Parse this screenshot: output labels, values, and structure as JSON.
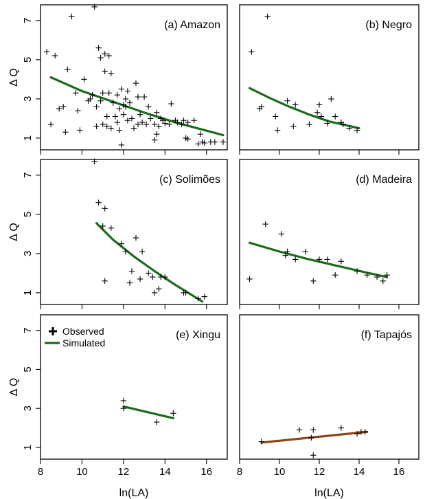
{
  "chart_data": {
    "type": "scatter",
    "layout": "3x2 panel grid",
    "xlabel": "ln(LA)",
    "ylabel": "Δ Q",
    "xlim": [
      8,
      17
    ],
    "ylim": [
      0.4,
      7.8
    ],
    "xticks": [
      8,
      10,
      12,
      14,
      16
    ],
    "yticks": [
      1,
      3,
      5,
      7
    ],
    "legend": {
      "position": "top-left",
      "panel": 4,
      "observed_label": "Observed",
      "simulated_label": "Simulated"
    },
    "colors": {
      "observed": "#000000",
      "simulated": "#1a6b1a",
      "simulated_tapajos": "#8b4513"
    },
    "panels": [
      {
        "title": "(a) Amazon",
        "observed": [
          [
            8.3,
            5.4
          ],
          [
            8.5,
            1.7
          ],
          [
            8.7,
            5.2
          ],
          [
            8.9,
            2.5
          ],
          [
            9.1,
            2.6
          ],
          [
            9.2,
            1.3
          ],
          [
            9.3,
            4.5
          ],
          [
            9.5,
            7.2
          ],
          [
            9.7,
            3.3
          ],
          [
            9.8,
            2.4
          ],
          [
            9.9,
            1.4
          ],
          [
            10.1,
            4.0
          ],
          [
            10.3,
            2.9
          ],
          [
            10.4,
            3.0
          ],
          [
            10.5,
            3.2
          ],
          [
            10.6,
            7.7
          ],
          [
            10.7,
            2.6
          ],
          [
            10.7,
            1.6
          ],
          [
            10.8,
            5.6
          ],
          [
            10.9,
            5.1
          ],
          [
            10.9,
            2.9
          ],
          [
            11.0,
            3.3
          ],
          [
            11.0,
            1.7
          ],
          [
            11.1,
            5.3
          ],
          [
            11.1,
            4.4
          ],
          [
            11.2,
            2.1
          ],
          [
            11.2,
            1.6
          ],
          [
            11.3,
            3.3
          ],
          [
            11.3,
            5.2
          ],
          [
            11.4,
            4.3
          ],
          [
            11.4,
            1.5
          ],
          [
            11.5,
            2.8
          ],
          [
            11.6,
            2.1
          ],
          [
            11.7,
            3.2
          ],
          [
            11.7,
            1.8
          ],
          [
            11.8,
            2.5
          ],
          [
            11.8,
            1.4
          ],
          [
            11.9,
            3.5
          ],
          [
            11.9,
            0.65
          ],
          [
            12.0,
            2.7
          ],
          [
            12.0,
            2.2
          ],
          [
            12.1,
            3.0
          ],
          [
            12.1,
            2.6
          ],
          [
            12.2,
            3.4
          ],
          [
            12.2,
            1.9
          ],
          [
            12.3,
            2.8
          ],
          [
            12.4,
            2.0
          ],
          [
            12.5,
            1.5
          ],
          [
            12.6,
            3.8
          ],
          [
            12.7,
            1.7
          ],
          [
            12.7,
            3.1
          ],
          [
            12.8,
            2.2
          ],
          [
            12.9,
            1.8
          ],
          [
            13.0,
            3.1
          ],
          [
            13.1,
            1.7
          ],
          [
            13.2,
            2.6
          ],
          [
            13.3,
            2.0
          ],
          [
            13.5,
            1.7
          ],
          [
            13.5,
            0.9
          ],
          [
            13.6,
            2.3
          ],
          [
            13.6,
            1.2
          ],
          [
            13.7,
            1.6
          ],
          [
            13.8,
            2.0
          ],
          [
            13.9,
            1.9
          ],
          [
            14.0,
            1.75
          ],
          [
            14.2,
            1.7
          ],
          [
            14.3,
            2.75
          ],
          [
            14.5,
            1.9
          ],
          [
            14.6,
            1.8
          ],
          [
            14.8,
            1.7
          ],
          [
            14.9,
            1.9
          ],
          [
            15.0,
            1.0
          ],
          [
            15.1,
            1.8
          ],
          [
            15.1,
            0.95
          ],
          [
            15.4,
            1.9
          ],
          [
            15.6,
            0.7
          ],
          [
            15.7,
            1.2
          ],
          [
            15.8,
            0.8
          ],
          [
            15.9,
            0.75
          ],
          [
            16.2,
            0.8
          ],
          [
            16.4,
            0.8
          ],
          [
            16.8,
            0.8
          ]
        ],
        "simulated": [
          [
            8.5,
            4.1
          ],
          [
            10.0,
            3.4
          ],
          [
            11.5,
            2.85
          ],
          [
            13.0,
            2.3
          ],
          [
            14.5,
            1.8
          ],
          [
            16.8,
            1.15
          ]
        ]
      },
      {
        "title": "(b) Negro",
        "observed": [
          [
            8.6,
            5.4
          ],
          [
            9.0,
            2.5
          ],
          [
            9.1,
            2.6
          ],
          [
            9.4,
            7.2
          ],
          [
            9.8,
            2.1
          ],
          [
            9.9,
            1.4
          ],
          [
            10.4,
            2.9
          ],
          [
            10.7,
            1.6
          ],
          [
            10.8,
            2.7
          ],
          [
            11.5,
            1.7
          ],
          [
            11.9,
            2.3
          ],
          [
            12.0,
            2.7
          ],
          [
            12.1,
            2.1
          ],
          [
            12.4,
            1.75
          ],
          [
            12.6,
            3.0
          ],
          [
            12.8,
            2.1
          ],
          [
            13.1,
            1.8
          ],
          [
            13.2,
            1.7
          ],
          [
            13.5,
            1.5
          ],
          [
            13.9,
            1.4
          ]
        ],
        "simulated": [
          [
            8.5,
            3.55
          ],
          [
            9.5,
            3.05
          ],
          [
            10.5,
            2.6
          ],
          [
            11.5,
            2.2
          ],
          [
            12.5,
            1.85
          ],
          [
            14.0,
            1.5
          ]
        ]
      },
      {
        "title": "(c) Solimões",
        "observed": [
          [
            10.6,
            7.7
          ],
          [
            10.8,
            5.6
          ],
          [
            11.0,
            4.4
          ],
          [
            11.1,
            5.3
          ],
          [
            11.1,
            1.6
          ],
          [
            11.4,
            4.3
          ],
          [
            11.9,
            3.5
          ],
          [
            12.1,
            3.1
          ],
          [
            12.3,
            1.5
          ],
          [
            12.4,
            2.1
          ],
          [
            12.6,
            3.8
          ],
          [
            12.8,
            1.7
          ],
          [
            12.9,
            3.1
          ],
          [
            13.2,
            2.0
          ],
          [
            13.4,
            1.8
          ],
          [
            13.5,
            1.0
          ],
          [
            13.7,
            1.2
          ],
          [
            13.8,
            1.8
          ],
          [
            14.0,
            1.8
          ],
          [
            14.9,
            1.0
          ],
          [
            15.0,
            1.0
          ],
          [
            15.6,
            0.7
          ],
          [
            15.9,
            0.8
          ]
        ],
        "simulated": [
          [
            10.7,
            4.55
          ],
          [
            11.5,
            3.7
          ],
          [
            12.5,
            2.85
          ],
          [
            13.5,
            2.1
          ],
          [
            14.5,
            1.4
          ],
          [
            15.8,
            0.55
          ]
        ]
      },
      {
        "title": "(d) Madeira",
        "observed": [
          [
            8.5,
            1.7
          ],
          [
            9.3,
            4.5
          ],
          [
            10.1,
            4.0
          ],
          [
            10.3,
            2.9
          ],
          [
            10.4,
            3.1
          ],
          [
            10.8,
            2.7
          ],
          [
            11.3,
            3.1
          ],
          [
            11.7,
            1.6
          ],
          [
            12.0,
            2.7
          ],
          [
            12.4,
            2.7
          ],
          [
            12.8,
            1.9
          ],
          [
            13.1,
            2.6
          ],
          [
            13.9,
            2.1
          ],
          [
            14.4,
            1.9
          ],
          [
            14.9,
            1.8
          ],
          [
            15.2,
            1.6
          ],
          [
            15.4,
            1.9
          ]
        ],
        "simulated": [
          [
            8.5,
            3.55
          ],
          [
            10.0,
            3.1
          ],
          [
            11.5,
            2.7
          ],
          [
            13.0,
            2.35
          ],
          [
            14.5,
            2.0
          ],
          [
            15.4,
            1.8
          ]
        ]
      },
      {
        "title": "(e) Xingu",
        "observed": [
          [
            12.0,
            3.4
          ],
          [
            12.0,
            3.0
          ],
          [
            13.6,
            2.3
          ],
          [
            14.4,
            2.75
          ]
        ],
        "simulated": [
          [
            12.0,
            3.1
          ],
          [
            14.4,
            2.5
          ]
        ]
      },
      {
        "title": "(f) Tapajós",
        "observed": [
          [
            9.1,
            1.3
          ],
          [
            11.0,
            1.9
          ],
          [
            11.6,
            1.5
          ],
          [
            11.7,
            1.9
          ],
          [
            11.7,
            0.6
          ],
          [
            13.1,
            2.0
          ],
          [
            13.9,
            1.7
          ],
          [
            14.1,
            1.8
          ],
          [
            14.3,
            1.8
          ]
        ],
        "simulated": [
          [
            9.1,
            1.25
          ],
          [
            14.4,
            1.8
          ]
        ]
      }
    ]
  }
}
